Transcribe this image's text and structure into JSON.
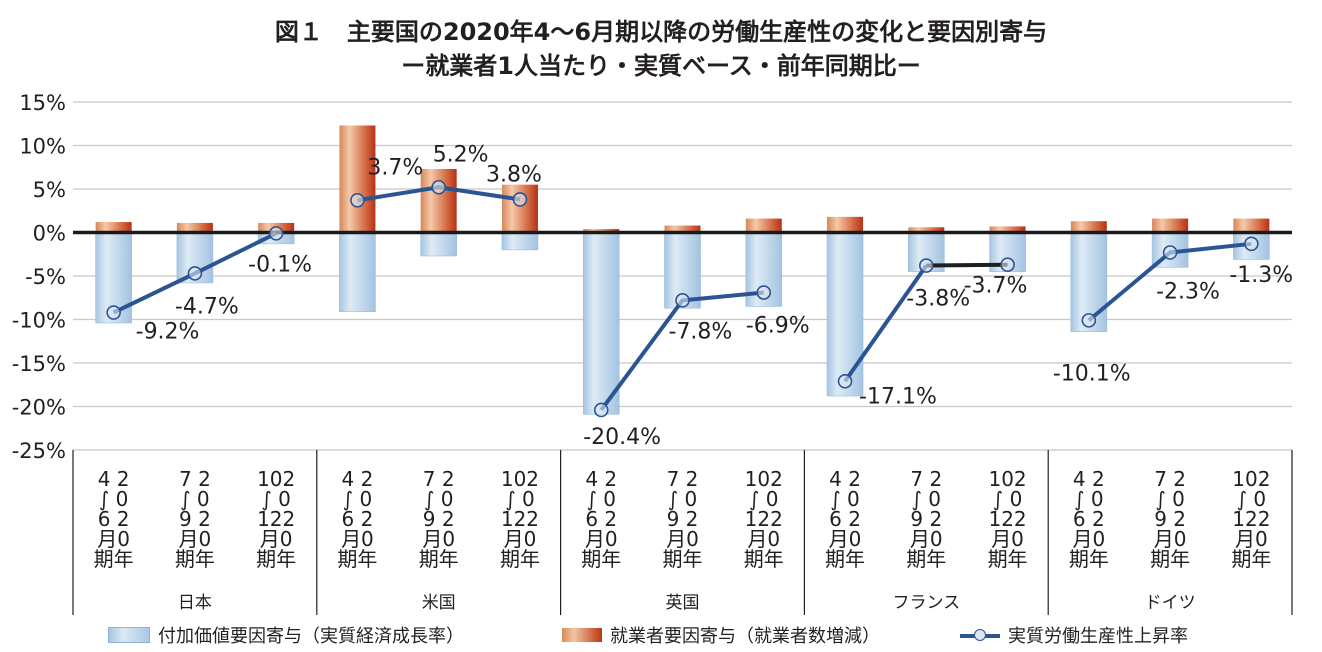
{
  "chart_data": {
    "type": "bar",
    "title": "図１　主要国の2020年4〜6月期以降の労働生産性の変化と要因別寄与",
    "subtitle": "ー就業者1人当たり・実質ベース・前年同期比ー",
    "xlabel": "",
    "ylabel": "",
    "ylim": [
      -25,
      15
    ],
    "y_ticks": [
      "15%",
      "10%",
      "5%",
      "0%",
      "-5%",
      "-10%",
      "-15%",
      "-20%",
      "-25%"
    ],
    "y_tick_values": [
      15,
      10,
      5,
      0,
      -5,
      -10,
      -15,
      -20,
      -25
    ],
    "grid": true,
    "legend_position": "bottom",
    "groups": [
      {
        "name": "日本",
        "periods": [
          {
            "label_lines": [
              "4 2",
              "∫ 0",
              "6 2",
              "月0",
              "期年"
            ]
          },
          {
            "label_lines": [
              "7 2",
              "∫ 0",
              "9 2",
              "月0",
              "期年"
            ]
          },
          {
            "label_lines": [
              "102",
              "∫ 0",
              "122",
              "月0",
              "期年"
            ]
          }
        ]
      },
      {
        "name": "米国",
        "periods": [
          {
            "label_lines": [
              "4 2",
              "∫ 0",
              "6 2",
              "月0",
              "期年"
            ]
          },
          {
            "label_lines": [
              "7 2",
              "∫ 0",
              "9 2",
              "月0",
              "期年"
            ]
          },
          {
            "label_lines": [
              "102",
              "∫ 0",
              "122",
              "月0",
              "期年"
            ]
          }
        ]
      },
      {
        "name": "英国",
        "periods": [
          {
            "label_lines": [
              "4 2",
              "∫ 0",
              "6 2",
              "月0",
              "期年"
            ]
          },
          {
            "label_lines": [
              "7 2",
              "∫ 0",
              "9 2",
              "月0",
              "期年"
            ]
          },
          {
            "label_lines": [
              "102",
              "∫ 0",
              "122",
              "月0",
              "期年"
            ]
          }
        ]
      },
      {
        "name": "フランス",
        "periods": [
          {
            "label_lines": [
              "4 2",
              "∫ 0",
              "6 2",
              "月0",
              "期年"
            ]
          },
          {
            "label_lines": [
              "7 2",
              "∫ 0",
              "9 2",
              "月0",
              "期年"
            ]
          },
          {
            "label_lines": [
              "102",
              "∫ 0",
              "122",
              "月0",
              "期年"
            ]
          }
        ]
      },
      {
        "name": "ドイツ",
        "periods": [
          {
            "label_lines": [
              "4 2",
              "∫ 0",
              "6 2",
              "月0",
              "期年"
            ]
          },
          {
            "label_lines": [
              "7 2",
              "∫ 0",
              "9 2",
              "月0",
              "期年"
            ]
          },
          {
            "label_lines": [
              "102",
              "∫ 0",
              "122",
              "月0",
              "期年"
            ]
          }
        ]
      }
    ],
    "categories": [
      "日本 2020年4〜6月期",
      "日本 2020年7〜9月期",
      "日本 2020年10〜12月期",
      "米国 2020年4〜6月期",
      "米国 2020年7〜9月期",
      "米国 2020年10〜12月期",
      "英国 2020年4〜6月期",
      "英国 2020年7〜9月期",
      "英国 2020年10〜12月期",
      "フランス 2020年4〜6月期",
      "フランス 2020年7〜9月期",
      "フランス 2020年10〜12月期",
      "ドイツ 2020年4〜6月期",
      "ドイツ 2020年7〜9月期",
      "ドイツ 2020年10〜12月期"
    ],
    "series": [
      {
        "name": "付加価値要因寄与（実質経済成長率）",
        "kind": "bar",
        "color": "#b7d1ea",
        "values": [
          -10.4,
          -5.8,
          -1.3,
          -9.1,
          -2.7,
          -2.0,
          -20.9,
          -8.7,
          -8.5,
          -18.8,
          -4.5,
          -4.5,
          -11.4,
          -4.0,
          -3.1
        ]
      },
      {
        "name": "就業者要因寄与（就業者数増減）",
        "kind": "bar",
        "color": "#d0623a",
        "values": [
          1.2,
          1.1,
          1.1,
          12.3,
          7.3,
          5.5,
          0.4,
          0.8,
          1.6,
          1.8,
          0.6,
          0.7,
          1.3,
          1.6,
          1.6
        ]
      },
      {
        "name": "実質労働生産性上昇率",
        "kind": "line",
        "color": "#2b5592",
        "values": [
          -9.2,
          -4.7,
          -0.1,
          3.7,
          5.2,
          3.8,
          -20.4,
          -7.8,
          -6.9,
          -17.1,
          -3.8,
          -3.7,
          -10.1,
          -2.3,
          -1.3
        ],
        "data_labels": [
          "-9.2%",
          "-4.7%",
          "-0.1%",
          "3.7%",
          "5.2%",
          "3.8%",
          "-20.4%",
          "-7.8%",
          "-6.9%",
          "-17.1%",
          "-3.8%",
          "-3.7%",
          "-10.1%",
          "-2.3%",
          "-1.3%"
        ]
      }
    ]
  },
  "legend": {
    "items": [
      {
        "label": "付加価値要因寄与（実質経済成長率）",
        "icon": "blue-bar-swatch"
      },
      {
        "label": "就業者要因寄与（就業者数増減）",
        "icon": "orange-bar-swatch"
      },
      {
        "label": "実質労働生産性上昇率",
        "icon": "line-marker-swatch"
      }
    ]
  }
}
